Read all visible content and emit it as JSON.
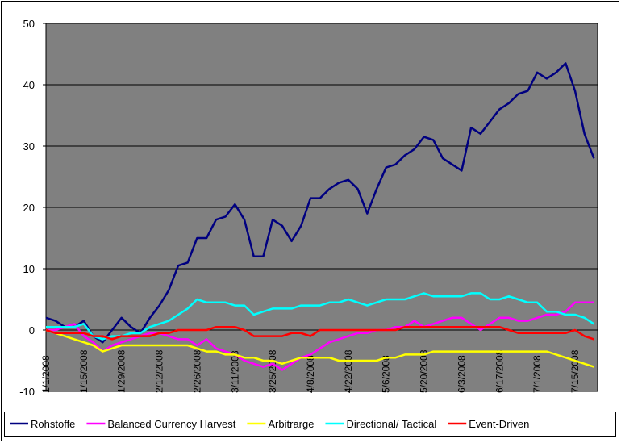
{
  "chart_data": {
    "type": "line",
    "categories": [
      "1/1/2008",
      null,
      null,
      null,
      "1/15/2008",
      null,
      null,
      null,
      "1/29/2008",
      null,
      null,
      null,
      "2/12/2008",
      null,
      null,
      null,
      "2/26/2008",
      null,
      null,
      null,
      "3/11/2008",
      null,
      null,
      null,
      "3/25/2008",
      null,
      null,
      null,
      "4/8/2008",
      null,
      null,
      null,
      "4/22/2008",
      null,
      null,
      null,
      "5/6/2008",
      null,
      null,
      null,
      "5/20/2008",
      null,
      null,
      null,
      "6/3/2008",
      null,
      null,
      null,
      "6/17/2008",
      null,
      null,
      null,
      "7/1/2008",
      null,
      null,
      null,
      "7/15/2008",
      null,
      null
    ],
    "series": [
      {
        "name": "Rohstoffe",
        "color": "#000080",
        "values": [
          2,
          1.5,
          0.5,
          0.5,
          1.5,
          -1,
          -2,
          0,
          2,
          0.5,
          -0.5,
          2,
          4,
          6.5,
          10.5,
          11,
          15,
          15,
          18,
          18.5,
          20.5,
          18,
          12,
          12,
          18,
          17,
          14.5,
          17,
          21.5,
          21.5,
          23,
          24,
          24.5,
          23,
          19,
          23,
          26.5,
          27,
          28.5,
          29.5,
          31.5,
          31,
          28,
          27,
          26,
          33,
          32,
          34,
          36,
          37,
          38.5,
          39,
          42,
          41,
          42,
          43.5,
          39,
          32,
          28
        ]
      },
      {
        "name": "Balanced Currency Harvest",
        "color": "#ff00ff",
        "values": [
          0,
          0,
          0.5,
          1,
          -1,
          -2,
          -3.5,
          -2.5,
          -2,
          -1.5,
          -1,
          -0.5,
          -0.5,
          -1,
          -1.5,
          -1.5,
          -2.5,
          -1.5,
          -3,
          -3.5,
          -4,
          -5,
          -5.5,
          -6,
          -5.5,
          -6.5,
          -5.5,
          -4.5,
          -4,
          -3,
          -2,
          -1.5,
          -1,
          -0.5,
          -0.5,
          0,
          0,
          0.5,
          0.5,
          1.5,
          0.5,
          1,
          1.5,
          2,
          2,
          1,
          0,
          1,
          2,
          2,
          1.5,
          1.5,
          2,
          2.5,
          2.5,
          3,
          4.5,
          4.5,
          4.5
        ]
      },
      {
        "name": "Arbitrarge",
        "color": "#ffff00",
        "values": [
          0,
          -0.5,
          -1,
          -1.5,
          -2,
          -2.5,
          -3.5,
          -3,
          -2.5,
          -2.5,
          -2.5,
          -2.5,
          -2.5,
          -2.5,
          -2.5,
          -2.5,
          -3,
          -3.5,
          -3.5,
          -4,
          -4,
          -4.5,
          -4.5,
          -5,
          -5,
          -5.5,
          -5,
          -4.5,
          -4.5,
          -4.5,
          -4.5,
          -5,
          -5,
          -5,
          -5,
          -5,
          -4.5,
          -4.5,
          -4,
          -4,
          -4,
          -3.5,
          -3.5,
          -3.5,
          -3.5,
          -3.5,
          -3.5,
          -3.5,
          -3.5,
          -3.5,
          -3.5,
          -3.5,
          -3.5,
          -3.5,
          -4,
          -4.5,
          -5,
          -5.5,
          -6
        ]
      },
      {
        "name": "Directional/ Tactical",
        "color": "#00ffff",
        "values": [
          0.5,
          0.5,
          0.5,
          0.5,
          1,
          -1,
          -1.5,
          -1,
          -1,
          -0.5,
          -0.5,
          0.5,
          1,
          1.5,
          2.5,
          3.5,
          5,
          4.5,
          4.5,
          4.5,
          4,
          4,
          2.5,
          3,
          3.5,
          3.5,
          3.5,
          4,
          4,
          4,
          4.5,
          4.5,
          5,
          4.5,
          4,
          4.5,
          5,
          5,
          5,
          5.5,
          6,
          5.5,
          5.5,
          5.5,
          5.5,
          6,
          6,
          5,
          5,
          5.5,
          5,
          4.5,
          4.5,
          3,
          3,
          2.5,
          2.5,
          2,
          1
        ]
      },
      {
        "name": "Event-Driven",
        "color": "#ff0000",
        "values": [
          0,
          -0.5,
          -0.5,
          -0.5,
          -0.5,
          -1,
          -1,
          -1.5,
          -1,
          -1,
          -1,
          -1,
          -0.5,
          -0.5,
          0,
          0,
          0,
          0,
          0.5,
          0.5,
          0.5,
          0,
          -1,
          -1,
          -1,
          -1,
          -0.5,
          -0.5,
          -1,
          0,
          0,
          0,
          0,
          0,
          0,
          0,
          0,
          0,
          0.5,
          0.5,
          0.5,
          0.5,
          0.5,
          0.5,
          0.5,
          0.5,
          0.5,
          0.5,
          0.5,
          0,
          -0.5,
          -0.5,
          -0.5,
          -0.5,
          -0.5,
          -0.5,
          0,
          -1,
          -1.5
        ]
      }
    ],
    "ylim": [
      -10,
      50
    ],
    "yticks": [
      -10,
      0,
      10,
      20,
      30,
      40,
      50
    ],
    "grid": true,
    "plot_background": "#808080",
    "legend": "bottom"
  }
}
